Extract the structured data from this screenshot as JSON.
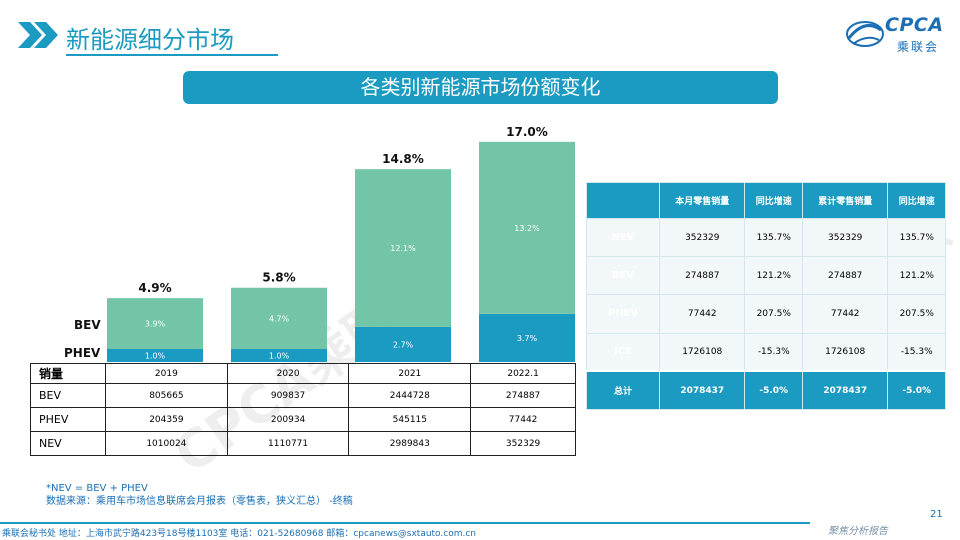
{
  "header": {
    "title": "新能源细分市场"
  },
  "logo": {
    "text": "CPCA",
    "sub": "乘联会"
  },
  "banner": {
    "title": "各类别新能源市场份额变化"
  },
  "chart_data": {
    "type": "bar",
    "stacked": true,
    "title": "各类别新能源市场份额变化",
    "categories": [
      "2019",
      "2020",
      "2021",
      "2022.1"
    ],
    "series": [
      {
        "name": "PHEV",
        "values": [
          1.0,
          1.0,
          2.7,
          3.7
        ],
        "labels": [
          "1.0%",
          "1.0%",
          "2.7%",
          "3.7%"
        ]
      },
      {
        "name": "BEV",
        "values": [
          3.9,
          4.7,
          12.1,
          13.2
        ],
        "labels": [
          "3.9%",
          "4.7%",
          "12.1%",
          "13.2%"
        ]
      }
    ],
    "totals": [
      4.9,
      5.8,
      14.8,
      17.0
    ],
    "total_labels": [
      "4.9%",
      "5.8%",
      "14.8%",
      "17.0%"
    ],
    "ylim": [
      0,
      17.5
    ],
    "grid": false,
    "colors": {
      "PHEV": "#1b9bc1",
      "BEV": "#72c5a6"
    }
  },
  "series_labels": {
    "bev": "BEV",
    "phev": "PHEV"
  },
  "sales_table": {
    "header": [
      "销量",
      "2019",
      "2020",
      "2021",
      "2022.1"
    ],
    "rows": [
      [
        "BEV",
        "805665",
        "909837",
        "2444728",
        "274887"
      ],
      [
        "PHEV",
        "204359",
        "200934",
        "545115",
        "77442"
      ],
      [
        "NEV",
        "1010024",
        "1110771",
        "2989843",
        "352329"
      ]
    ]
  },
  "share_table": {
    "header": [
      "",
      "本月零售销量",
      "同比增速",
      "累计零售销量",
      "同比增速"
    ],
    "rows": [
      [
        "NEV",
        "352329",
        "135.7%",
        "352329",
        "135.7%"
      ],
      [
        "BEV",
        "274887",
        "121.2%",
        "274887",
        "121.2%"
      ],
      [
        "PHEV",
        "77442",
        "207.5%",
        "77442",
        "207.5%"
      ],
      [
        "ICE",
        "1726108",
        "-15.3%",
        "1726108",
        "-15.3%"
      ]
    ],
    "total": [
      "总计",
      "2078437",
      "-5.0%",
      "2078437",
      "-5.0%"
    ]
  },
  "watermark": "CPCA乘联会",
  "notes": {
    "line1": "*NEV = BEV + PHEV",
    "line2": "数据来源：乘用车市场信息联席会月报表（零售表，狭义汇总） -终稿"
  },
  "footer": {
    "address": "乘联会秘书处   地址：上海市武宁路423号18号楼1103室   电话：021-52680968   邮箱：cpcanews@sxtauto.com.cn",
    "sign": "聚焦分析报告",
    "page": "21"
  },
  "colors": {
    "accent": "#1b9bc1",
    "bev": "#72c5a6",
    "phev": "#1b9bc1"
  }
}
